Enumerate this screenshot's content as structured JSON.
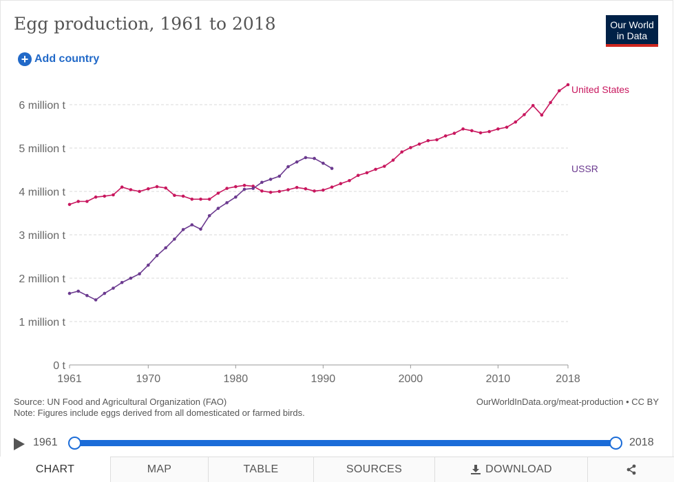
{
  "header": {
    "title": "Egg production, 1961 to 2018",
    "logo_line1": "Our World",
    "logo_line2": "in Data",
    "add_country_label": "Add country"
  },
  "colors": {
    "united_states": "#c8175e",
    "ussr": "#6b3a8f",
    "accent": "#1b6cd8"
  },
  "chart_data": {
    "type": "line",
    "title": "Egg production, 1961 to 2018",
    "xlim": [
      1961,
      2018
    ],
    "ylim": [
      0,
      6000000
    ],
    "x_ticks": [
      1961,
      1970,
      1980,
      1990,
      2000,
      2010,
      2018
    ],
    "y_ticks": [
      {
        "value": 0,
        "label": "0 t"
      },
      {
        "value": 1000000,
        "label": "1 million t"
      },
      {
        "value": 2000000,
        "label": "2 million t"
      },
      {
        "value": 3000000,
        "label": "3 million t"
      },
      {
        "value": 4000000,
        "label": "4 million t"
      },
      {
        "value": 5000000,
        "label": "5 million t"
      },
      {
        "value": 6000000,
        "label": "6 million t"
      }
    ],
    "series": [
      {
        "name": "United States",
        "label": "United States",
        "color": "#c8175e",
        "x": [
          1961,
          1962,
          1963,
          1964,
          1965,
          1966,
          1967,
          1968,
          1969,
          1970,
          1971,
          1972,
          1973,
          1974,
          1975,
          1976,
          1977,
          1978,
          1979,
          1980,
          1981,
          1982,
          1983,
          1984,
          1985,
          1986,
          1987,
          1988,
          1989,
          1990,
          1991,
          1992,
          1993,
          1994,
          1995,
          1996,
          1997,
          1998,
          1999,
          2000,
          2001,
          2002,
          2003,
          2004,
          2005,
          2006,
          2007,
          2008,
          2009,
          2010,
          2011,
          2012,
          2013,
          2014,
          2015,
          2016,
          2017,
          2018
        ],
        "values": [
          3700000,
          3770000,
          3770000,
          3870000,
          3890000,
          3920000,
          4100000,
          4040000,
          4000000,
          4060000,
          4110000,
          4080000,
          3910000,
          3890000,
          3820000,
          3820000,
          3820000,
          3960000,
          4070000,
          4110000,
          4140000,
          4120000,
          4010000,
          3980000,
          4000000,
          4040000,
          4090000,
          4060000,
          4010000,
          4030000,
          4100000,
          4180000,
          4250000,
          4370000,
          4430000,
          4510000,
          4580000,
          4720000,
          4910000,
          5010000,
          5090000,
          5170000,
          5190000,
          5280000,
          5340000,
          5440000,
          5400000,
          5350000,
          5380000,
          5440000,
          5480000,
          5600000,
          5770000,
          5980000,
          5760000,
          6050000,
          6320000,
          6460000
        ]
      },
      {
        "name": "USSR",
        "label": "USSR",
        "color": "#6b3a8f",
        "x": [
          1961,
          1962,
          1963,
          1964,
          1965,
          1966,
          1967,
          1968,
          1969,
          1970,
          1971,
          1972,
          1973,
          1974,
          1975,
          1976,
          1977,
          1978,
          1979,
          1980,
          1981,
          1982,
          1983,
          1984,
          1985,
          1986,
          1987,
          1988,
          1989,
          1990,
          1991
        ],
        "values": [
          1650000,
          1700000,
          1600000,
          1500000,
          1650000,
          1770000,
          1900000,
          2000000,
          2100000,
          2300000,
          2520000,
          2700000,
          2900000,
          3120000,
          3230000,
          3130000,
          3440000,
          3610000,
          3740000,
          3870000,
          4050000,
          4070000,
          4210000,
          4280000,
          4350000,
          4570000,
          4680000,
          4780000,
          4760000,
          4650000,
          4530000
        ]
      }
    ]
  },
  "footer": {
    "source": "Source: UN Food and Agricultural Organization (FAO)",
    "note": "Note: Figures include eggs derived from all domesticated or farmed birds.",
    "url": "OurWorldInData.org/meat-production • CC BY"
  },
  "timeline": {
    "start_label": "1961",
    "end_label": "2018",
    "selected_start": 1961,
    "selected_end": 2018
  },
  "tabs": [
    {
      "id": "chart",
      "label": "CHART",
      "active": true
    },
    {
      "id": "map",
      "label": "MAP",
      "active": false
    },
    {
      "id": "table",
      "label": "TABLE",
      "active": false
    },
    {
      "id": "sources",
      "label": "SOURCES",
      "active": false
    },
    {
      "id": "download",
      "label": "DOWNLOAD",
      "active": false
    }
  ]
}
